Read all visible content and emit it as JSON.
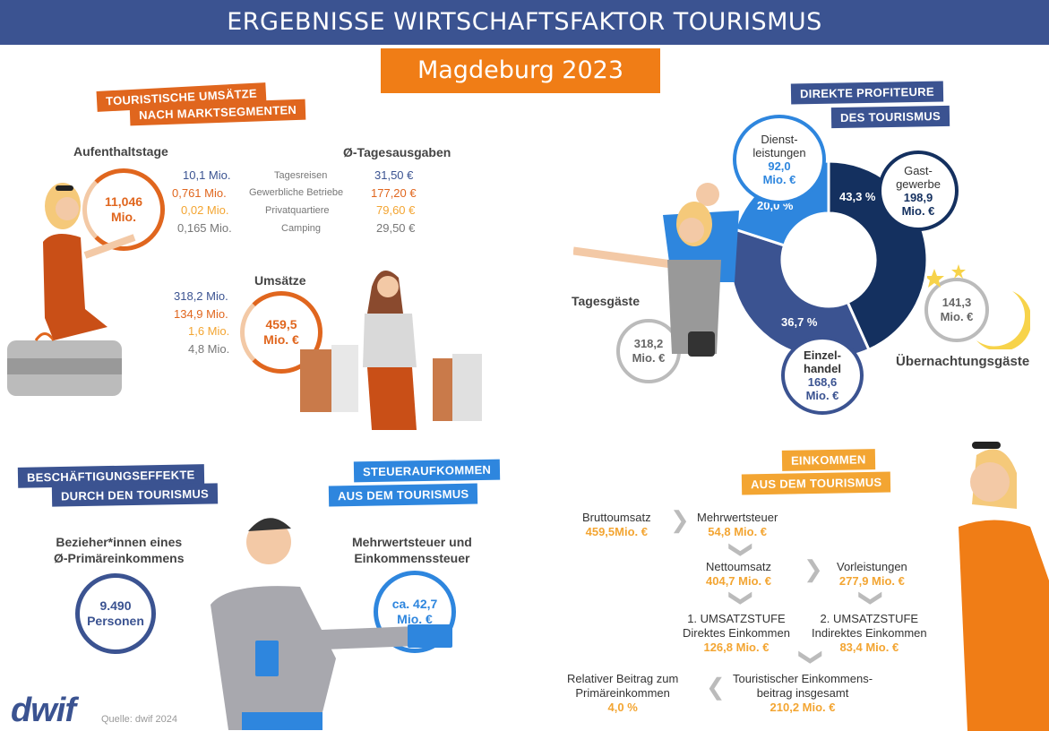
{
  "header": {
    "title": "ERGEBNISSE WIRTSCHAFTSFAKTOR TOURISMUS",
    "subtitle": "Magdeburg 2023"
  },
  "umsaetze": {
    "tag1": "TOURISTISCHE UMSÄTZE",
    "tag2": "NACH MARKTSEGMENTEN",
    "aufenthaltstage_label": "Aufenthaltstage",
    "aufenthaltstage_total_l1": "11,046",
    "aufenthaltstage_total_l2": "Mio.",
    "tagesausgaben_label": "Ø-Tagesausgaben",
    "umsaetze_label": "Umsätze",
    "umsaetze_total_l1": "459,5",
    "umsaetze_total_l2": "Mio. €",
    "rows": [
      {
        "segment": "Tagesreisen",
        "tage": "10,1 Mio.",
        "ausgaben": "31,50 €",
        "umsatz": "318,2 Mio."
      },
      {
        "segment": "Gewerbliche Betriebe",
        "tage": "0,761 Mio.",
        "ausgaben": "177,20 €",
        "umsatz": "134,9 Mio."
      },
      {
        "segment": "Privatquartiere",
        "tage": "0,02 Mio.",
        "ausgaben": "79,60 €",
        "umsatz": "1,6 Mio."
      },
      {
        "segment": "Camping",
        "tage": "0,165 Mio.",
        "ausgaben": "29,50 €",
        "umsatz": "4,8 Mio."
      }
    ]
  },
  "profiteure": {
    "tag1": "DIREKTE PROFITEURE",
    "tag2": "DES TOURISMUS",
    "tagesgaeste_label": "Tagesgäste",
    "tagesgaeste_l1": "318,2",
    "tagesgaeste_l2": "Mio. €",
    "uebernachtung_label": "Übernachtungsgäste",
    "uebernachtung_l1": "141,3",
    "uebernachtung_l2": "Mio. €"
  },
  "chart_data": {
    "type": "pie",
    "variant": "donut",
    "slices": [
      {
        "name_l1": "Gast-",
        "name_l2": "gewerbe",
        "value_l1": "198,9",
        "value_l2": "Mio. €",
        "percent": 43.3,
        "percent_label": "43,3 %",
        "color": "#14305f"
      },
      {
        "name_l1": "Einzel-",
        "name_l2": "handel",
        "value_l1": "168,6",
        "value_l2": "Mio. €",
        "percent": 36.7,
        "percent_label": "36,7 %",
        "color": "#3b5391"
      },
      {
        "name_l1": "Dienst-",
        "name_l2": "leistungen",
        "value_l1": "92,0",
        "value_l2": "Mio. €",
        "percent": 20.0,
        "percent_label": "20,0 %",
        "color": "#2e86de"
      }
    ]
  },
  "beschaeftigung": {
    "tag1": "BESCHÄFTIGUNGSEFFEKTE",
    "tag2": "DURCH DEN TOURISMUS",
    "label_l1": "Bezieher*innen eines",
    "label_l2": "Ø-Primäreinkommens",
    "value_l1": "9.490",
    "value_l2": "Personen"
  },
  "steuer": {
    "tag1": "STEUERAUFKOMMEN",
    "tag2": "AUS DEM TOURISMUS",
    "label_l1": "Mehrwertsteuer und",
    "label_l2": "Einkommenssteuer",
    "value_l1": "ca. 42,7",
    "value_l2": "Mio. €"
  },
  "einkommen": {
    "tag1": "EINKOMMEN",
    "tag2": "AUS DEM TOURISMUS",
    "brutto": {
      "label": "Bruttoumsatz",
      "value": "459,5Mio. €"
    },
    "mwst": {
      "label": "Mehrwertsteuer",
      "value": "54,8 Mio. €"
    },
    "netto": {
      "label": "Nettoumsatz",
      "value": "404,7 Mio. €"
    },
    "vorleistungen": {
      "label": "Vorleistungen",
      "value": "277,9 Mio. €"
    },
    "stufe1": {
      "label_l1": "1. UMSATZSTUFE",
      "label_l2": "Direktes Einkommen",
      "value": "126,8 Mio. €"
    },
    "stufe2": {
      "label_l1": "2. UMSATZSTUFE",
      "label_l2": "Indirektes Einkommen",
      "value": "83,4 Mio. €"
    },
    "gesamt": {
      "label_l1": "Touristischer Einkommens-",
      "label_l2": "beitrag insgesamt",
      "value": "210,2 Mio. €"
    },
    "relativ": {
      "label_l1": "Relativer Beitrag zum",
      "label_l2": "Primäreinkommen",
      "value": "4,0 %"
    }
  },
  "footer": {
    "logo": "dwif",
    "source": "Quelle: dwif 2024"
  }
}
